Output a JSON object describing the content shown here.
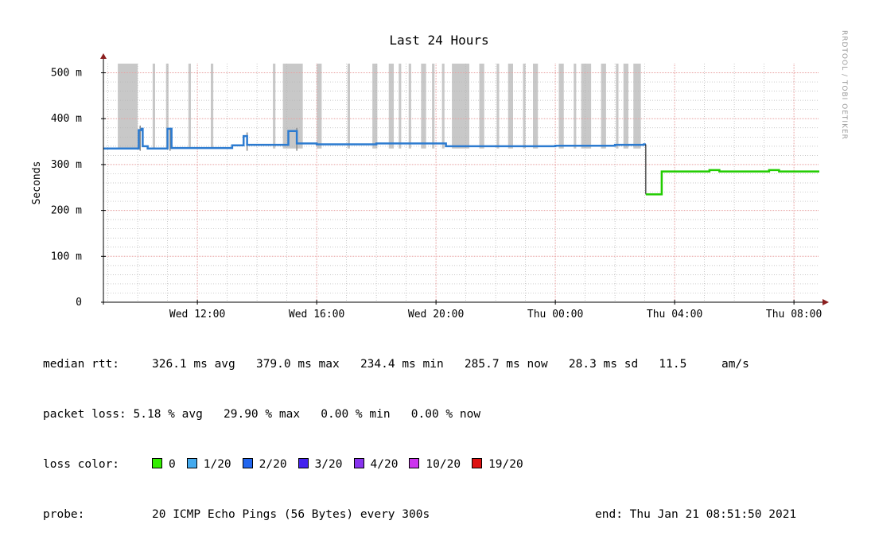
{
  "chart_data": {
    "type": "line",
    "title": "Last 24 Hours",
    "ylabel": "Seconds",
    "watermark": "RRDTOOL / TOBI OETIKER",
    "ylim": [
      0,
      0.52
    ],
    "y_ticks": [
      {
        "value": 0,
        "label": "0"
      },
      {
        "value": 0.1,
        "label": "100 m"
      },
      {
        "value": 0.2,
        "label": "200 m"
      },
      {
        "value": 0.3,
        "label": "300 m"
      },
      {
        "value": 0.4,
        "label": "400 m"
      },
      {
        "value": 0.5,
        "label": "500 m"
      }
    ],
    "xlim": [
      "2021-01-20 08:51",
      "2021-01-21 08:51"
    ],
    "x_ticks": [
      {
        "time": "2021-01-20 12:00",
        "label": "Wed 12:00"
      },
      {
        "time": "2021-01-20 16:00",
        "label": "Wed 16:00"
      },
      {
        "time": "2021-01-20 20:00",
        "label": "Wed 20:00"
      },
      {
        "time": "2021-01-21 00:00",
        "label": "Thu 00:00"
      },
      {
        "time": "2021-01-21 04:00",
        "label": "Thu 04:00"
      },
      {
        "time": "2021-01-21 08:00",
        "label": "Thu 08:00"
      }
    ],
    "grid": true,
    "colors": {
      "loss_band": "#c8c8c8",
      "major_grid": "#e8a0a0",
      "minor_grid": "#b4b4b4",
      "axis": "#000000",
      "arrow": "#8b1e1e",
      "smoke": "#8a8a8a"
    },
    "loss_bands": [
      [
        "2021-01-20 09:20",
        "2021-01-20 10:00"
      ],
      [
        "2021-01-20 10:30",
        "2021-01-20 10:35"
      ],
      [
        "2021-01-20 10:57",
        "2021-01-20 11:02"
      ],
      [
        "2021-01-20 11:42",
        "2021-01-20 11:47"
      ],
      [
        "2021-01-20 12:27",
        "2021-01-20 12:32"
      ],
      [
        "2021-01-20 14:32",
        "2021-01-20 14:37"
      ],
      [
        "2021-01-20 14:52",
        "2021-01-20 15:32"
      ],
      [
        "2021-01-20 16:00",
        "2021-01-20 16:10"
      ],
      [
        "2021-01-20 17:02",
        "2021-01-20 17:07"
      ],
      [
        "2021-01-20 17:52",
        "2021-01-20 18:02"
      ],
      [
        "2021-01-20 18:25",
        "2021-01-20 18:35"
      ],
      [
        "2021-01-20 18:45",
        "2021-01-20 18:50"
      ],
      [
        "2021-01-20 19:05",
        "2021-01-20 19:10"
      ],
      [
        "2021-01-20 19:30",
        "2021-01-20 19:40"
      ],
      [
        "2021-01-20 19:52",
        "2021-01-20 19:57"
      ],
      [
        "2021-01-20 20:12",
        "2021-01-20 20:17"
      ],
      [
        "2021-01-20 20:32",
        "2021-01-20 21:07"
      ],
      [
        "2021-01-20 21:27",
        "2021-01-20 21:37"
      ],
      [
        "2021-01-20 22:02",
        "2021-01-20 22:07"
      ],
      [
        "2021-01-20 22:25",
        "2021-01-20 22:35"
      ],
      [
        "2021-01-20 22:55",
        "2021-01-20 23:00"
      ],
      [
        "2021-01-20 23:15",
        "2021-01-20 23:25"
      ],
      [
        "2021-01-21 00:07",
        "2021-01-21 00:17"
      ],
      [
        "2021-01-21 00:37",
        "2021-01-21 00:42"
      ],
      [
        "2021-01-21 00:52",
        "2021-01-21 01:12"
      ],
      [
        "2021-01-21 01:32",
        "2021-01-21 01:42"
      ],
      [
        "2021-01-21 02:02",
        "2021-01-21 02:07"
      ],
      [
        "2021-01-21 02:17",
        "2021-01-21 02:27"
      ],
      [
        "2021-01-21 02:37",
        "2021-01-21 02:52"
      ]
    ],
    "smoke_spikes": [
      {
        "time": "2021-01-20 10:05",
        "top": 0.385
      },
      {
        "time": "2021-01-20 11:05",
        "top": 0.38
      },
      {
        "time": "2021-01-20 13:40",
        "top": 0.37
      },
      {
        "time": "2021-01-20 15:20",
        "top": 0.38
      }
    ],
    "series": [
      {
        "name": "median rtt",
        "segments": [
          {
            "color": "#2c7bd0",
            "points": [
              [
                "2021-01-20 08:51",
                0.335
              ],
              [
                "2021-01-20 10:00",
                0.335
              ],
              [
                "2021-01-20 10:02",
                0.375
              ],
              [
                "2021-01-20 10:08",
                0.378
              ],
              [
                "2021-01-20 10:10",
                0.34
              ],
              [
                "2021-01-20 10:20",
                0.335
              ],
              [
                "2021-01-20 10:58",
                0.335
              ],
              [
                "2021-01-20 11:00",
                0.378
              ],
              [
                "2021-01-20 11:06",
                0.378
              ],
              [
                "2021-01-20 11:08",
                0.336
              ],
              [
                "2021-01-20 12:00",
                0.336
              ],
              [
                "2021-01-20 13:00",
                0.336
              ],
              [
                "2021-01-20 13:10",
                0.342
              ],
              [
                "2021-01-20 13:30",
                0.342
              ],
              [
                "2021-01-20 13:33",
                0.362
              ],
              [
                "2021-01-20 13:37",
                0.362
              ],
              [
                "2021-01-20 13:40",
                0.343
              ],
              [
                "2021-01-20 15:00",
                0.343
              ],
              [
                "2021-01-20 15:03",
                0.373
              ],
              [
                "2021-01-20 15:15",
                0.373
              ],
              [
                "2021-01-20 15:20",
                0.346
              ],
              [
                "2021-01-20 16:00",
                0.344
              ],
              [
                "2021-01-20 18:00",
                0.346
              ],
              [
                "2021-01-20 20:00",
                0.346
              ],
              [
                "2021-01-20 20:20",
                0.34
              ],
              [
                "2021-01-21 00:00",
                0.341
              ],
              [
                "2021-01-21 02:00",
                0.343
              ],
              [
                "2021-01-21 02:58",
                0.344
              ],
              [
                "2021-01-21 03:02",
                0.344
              ]
            ]
          },
          {
            "color": "#22cc00",
            "points": [
              [
                "2021-01-21 03:02",
                0.235
              ],
              [
                "2021-01-21 03:32",
                0.235
              ],
              [
                "2021-01-21 03:34",
                0.285
              ],
              [
                "2021-01-21 05:00",
                0.285
              ],
              [
                "2021-01-21 05:10",
                0.288
              ],
              [
                "2021-01-21 05:30",
                0.285
              ],
              [
                "2021-01-21 07:05",
                0.285
              ],
              [
                "2021-01-21 07:10",
                0.288
              ],
              [
                "2021-01-21 07:30",
                0.285
              ],
              [
                "2021-01-21 08:51",
                0.285
              ]
            ]
          }
        ]
      }
    ]
  },
  "legend": {
    "rtt": {
      "label": "median rtt:",
      "avg": "326.1 ms avg",
      "max": "379.0 ms max",
      "min": "234.4 ms min",
      "now": "285.7 ms now",
      "sd": "28.3 ms sd",
      "am": "11.5",
      "am_unit": "am/s"
    },
    "packet_loss": {
      "label": "packet loss:",
      "avg": "5.18 % avg",
      "max": "29.90 % max",
      "min": "0.00 % min",
      "now": "0.00 % now"
    },
    "loss_color": {
      "label": "loss color:",
      "items": [
        {
          "label": "0",
          "color": "#33ee00"
        },
        {
          "label": "1/20",
          "color": "#44aaee"
        },
        {
          "label": "2/20",
          "color": "#2266ee"
        },
        {
          "label": "3/20",
          "color": "#4422ee"
        },
        {
          "label": "4/20",
          "color": "#8833ee"
        },
        {
          "label": "10/20",
          "color": "#cc33ee"
        },
        {
          "label": "19/20",
          "color": "#dd1111"
        }
      ]
    },
    "probe": {
      "label": "probe:",
      "text": "20 ICMP Echo Pings (56 Bytes) every 300s",
      "end": "end: Thu Jan 21 08:51:50 2021"
    }
  }
}
